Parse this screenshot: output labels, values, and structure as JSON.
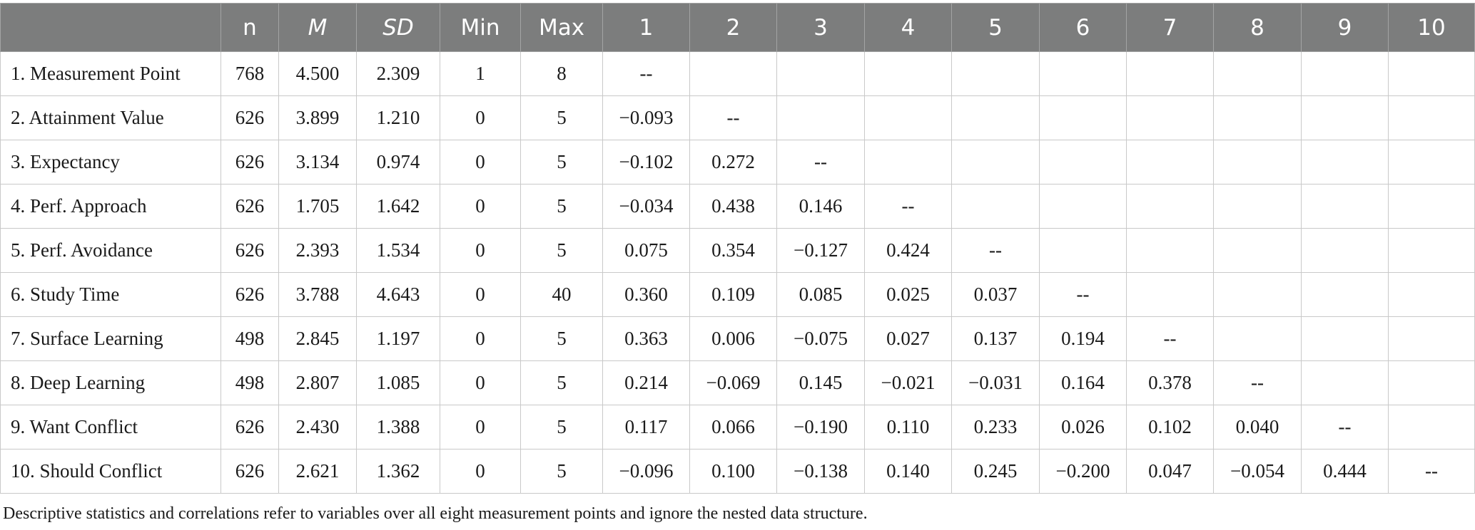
{
  "table": {
    "headers": [
      "",
      "n",
      "M",
      "SD",
      "Min",
      "Max",
      "1",
      "2",
      "3",
      "4",
      "5",
      "6",
      "7",
      "8",
      "9",
      "10"
    ],
    "rows": [
      [
        "1. Measurement Point",
        "768",
        "4.500",
        "2.309",
        "1",
        "8",
        "--",
        "",
        "",
        "",
        "",
        "",
        "",
        "",
        "",
        ""
      ],
      [
        "2. Attainment Value",
        "626",
        "3.899",
        "1.210",
        "0",
        "5",
        "−0.093",
        "--",
        "",
        "",
        "",
        "",
        "",
        "",
        "",
        ""
      ],
      [
        "3. Expectancy",
        "626",
        "3.134",
        "0.974",
        "0",
        "5",
        "−0.102",
        "0.272",
        "--",
        "",
        "",
        "",
        "",
        "",
        "",
        ""
      ],
      [
        "4. Perf. Approach",
        "626",
        "1.705",
        "1.642",
        "0",
        "5",
        "−0.034",
        "0.438",
        "0.146",
        "--",
        "",
        "",
        "",
        "",
        "",
        ""
      ],
      [
        "5. Perf. Avoidance",
        "626",
        "2.393",
        "1.534",
        "0",
        "5",
        "0.075",
        "0.354",
        "−0.127",
        "0.424",
        "--",
        "",
        "",
        "",
        "",
        ""
      ],
      [
        "6. Study Time",
        "626",
        "3.788",
        "4.643",
        "0",
        "40",
        "0.360",
        "0.109",
        "0.085",
        "0.025",
        "0.037",
        "--",
        "",
        "",
        "",
        ""
      ],
      [
        "7. Surface Learning",
        "498",
        "2.845",
        "1.197",
        "0",
        "5",
        "0.363",
        "0.006",
        "−0.075",
        "0.027",
        "0.137",
        "0.194",
        "--",
        "",
        "",
        ""
      ],
      [
        "8. Deep Learning",
        "498",
        "2.807",
        "1.085",
        "0",
        "5",
        "0.214",
        "−0.069",
        "0.145",
        "−0.021",
        "−0.031",
        "0.164",
        "0.378",
        "--",
        "",
        ""
      ],
      [
        "9. Want Conflict",
        "626",
        "2.430",
        "1.388",
        "0",
        "5",
        "0.117",
        "0.066",
        "−0.190",
        "0.110",
        "0.233",
        "0.026",
        "0.102",
        "0.040",
        "--",
        ""
      ],
      [
        "10. Should Conflict",
        "626",
        "2.621",
        "1.362",
        "0",
        "5",
        "−0.096",
        "0.100",
        "−0.138",
        "0.140",
        "0.245",
        "−0.200",
        "0.047",
        "−0.054",
        "0.444",
        "--"
      ]
    ]
  },
  "note": "Descriptive statistics and correlations refer to variables over all eight measurement points and ignore the nested data structure."
}
